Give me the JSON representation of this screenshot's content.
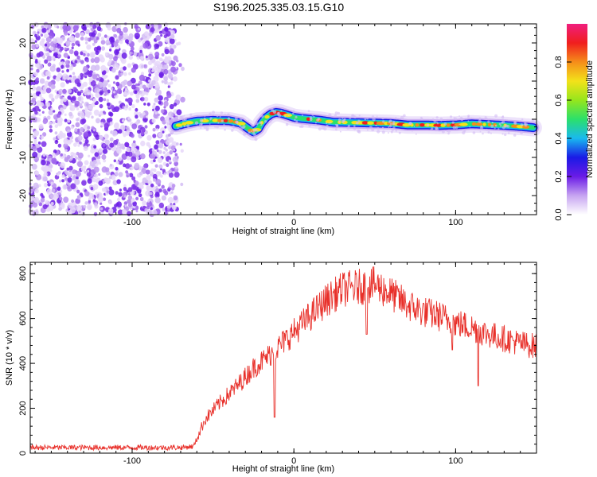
{
  "title": "S196.2025.335.03.15.G10",
  "chart_data": [
    {
      "type": "heatmap",
      "name": "spectrogram",
      "xlabel": "Height of straight line (km)",
      "ylabel": "Frequency (Hz)",
      "xlim": [
        -163,
        150
      ],
      "ylim": [
        -25,
        25
      ],
      "xticks": [
        -100,
        0,
        100
      ],
      "yticks": [
        -20,
        -10,
        0,
        10,
        20
      ],
      "noise_region": {
        "x_from": -163,
        "x_to": -72,
        "note": "noise-only speckle"
      },
      "ridge": {
        "x": [
          -73,
          -68,
          -60,
          -50,
          -40,
          -33,
          -28,
          -25,
          -22,
          -20,
          -17,
          -14,
          -11,
          -8,
          -5,
          -2,
          0,
          5,
          10,
          15,
          20,
          25,
          30,
          40,
          50,
          60,
          70,
          80,
          90,
          100,
          110,
          120,
          130,
          140,
          148
        ],
        "frequency": [
          -1.8,
          -1.2,
          -0.5,
          -0.3,
          -0.4,
          -1.0,
          -2.5,
          -3.3,
          -2.5,
          -1.0,
          0.5,
          1.4,
          1.8,
          1.6,
          1.2,
          0.8,
          0.5,
          0.2,
          0.0,
          -0.2,
          -0.5,
          -0.8,
          -0.8,
          -0.9,
          -1.0,
          -1.1,
          -1.5,
          -1.5,
          -1.6,
          -1.5,
          -1.2,
          -1.4,
          -1.6,
          -1.9,
          -2.2
        ]
      },
      "colorbar": {
        "label": "Normalized spectral amplitude",
        "range": [
          0,
          1
        ],
        "ticks": [
          "0.0",
          "0.2",
          "0.4",
          "0.6",
          "0.8"
        ],
        "colors": [
          "#ffffff",
          "#c7a4f1",
          "#6a1be6",
          "#1a1ae6",
          "#19b9ef",
          "#2be06b",
          "#96e61c",
          "#f3e21a",
          "#f58d1a",
          "#f01e1e",
          "#f01e7e"
        ]
      }
    },
    {
      "type": "line",
      "name": "snr",
      "xlabel": "Height of straight line (km)",
      "ylabel": "SNR (10 * v/v)",
      "xlim": [
        -163,
        150
      ],
      "ylim": [
        0,
        850
      ],
      "xticks": [
        -100,
        0,
        100
      ],
      "yticks": [
        0,
        200,
        400,
        600,
        800
      ],
      "line_color": "#e8302a",
      "trend": {
        "x": [
          -163,
          -70,
          -62,
          -55,
          -45,
          -35,
          -25,
          -18,
          -10,
          0,
          10,
          20,
          30,
          40,
          50,
          60,
          70,
          80,
          90,
          100,
          110,
          120,
          130,
          140,
          150
        ],
        "snr": [
          25,
          25,
          30,
          150,
          230,
          300,
          380,
          420,
          470,
          540,
          610,
          680,
          730,
          740,
          750,
          710,
          660,
          630,
          610,
          580,
          560,
          530,
          510,
          490,
          475
        ]
      },
      "dips": [
        {
          "x": 45,
          "snr": 530
        },
        {
          "x": 114,
          "snr": 300
        },
        {
          "x": 98,
          "snr": 460
        },
        {
          "x": -12,
          "snr": 160
        }
      ]
    }
  ]
}
